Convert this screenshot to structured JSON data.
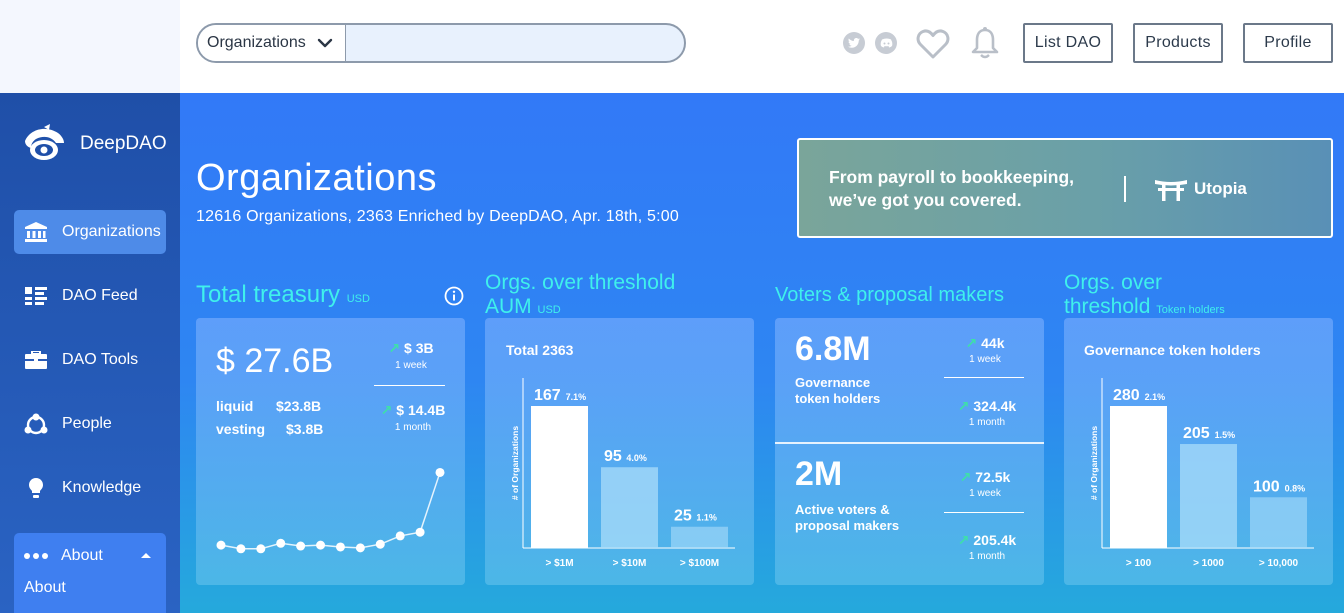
{
  "search": {
    "category": "Organizations",
    "placeholder": ""
  },
  "top_buttons": {
    "list_dao": "List DAO",
    "products": "Products",
    "profile": "Profile"
  },
  "icons": {
    "twitter": "twitter-icon",
    "discord": "discord-icon",
    "heart": "heart-icon",
    "bell": "bell-icon"
  },
  "brand": {
    "name": "DeepDAO"
  },
  "sidebar": {
    "items": [
      {
        "label": "Organizations",
        "icon": "bank-icon"
      },
      {
        "label": "DAO Feed",
        "icon": "feed-icon"
      },
      {
        "label": "DAO Tools",
        "icon": "toolbox-icon"
      },
      {
        "label": "People",
        "icon": "people-icon"
      },
      {
        "label": "Knowledge",
        "icon": "lightbulb-icon"
      }
    ],
    "about": {
      "label": "About",
      "sub_label": "About"
    }
  },
  "page": {
    "title": "Organizations",
    "subtitle": "12616 Organizations, 2363 Enriched by DeepDAO, Apr. 18th, 5:00"
  },
  "banner": {
    "line1": "From payroll to bookkeeping,",
    "line2": "we’ve got you covered.",
    "brand": "Utopia"
  },
  "treasury": {
    "title": "Total treasury",
    "unit": "USD",
    "value": "$ 27.6B",
    "liquid_label": "liquid",
    "liquid_value": "$23.8B",
    "vesting_label": "vesting",
    "vesting_value": "$3.8B",
    "change_1w": "$ 3B",
    "period_1w": "1 week",
    "change_1m": "$ 14.4B",
    "period_1m": "1 month",
    "sparkline": [
      0.14,
      0.1,
      0.1,
      0.16,
      0.13,
      0.14,
      0.12,
      0.11,
      0.15,
      0.24,
      0.28,
      0.93
    ]
  },
  "aum": {
    "title_line1": "Orgs. over threshold",
    "title_line2": "AUM",
    "unit": "USD",
    "card_title": "Total 2363",
    "ylabel": "# of Organizations",
    "categories": [
      "> $1M",
      "> $10M",
      "> $100M"
    ],
    "values": [
      167,
      95,
      25
    ],
    "percents": [
      "7.1%",
      "4.0%",
      "1.1%"
    ]
  },
  "voters": {
    "title": "Voters & proposal makers",
    "holders_value": "6.8M",
    "holders_label_1": "Governance",
    "holders_label_2": "token holders",
    "holders_1w": "44k",
    "holders_1w_period": "1 week",
    "holders_1m": "324.4k",
    "holders_1m_period": "1 month",
    "active_value": "2M",
    "active_label_1": "Active voters &",
    "active_label_2": "proposal makers",
    "active_1w": "72.5k",
    "active_1w_period": "1 week",
    "active_1m": "205.4k",
    "active_1m_period": "1 month"
  },
  "holders_threshold": {
    "title_line1": "Orgs. over",
    "title_line2": "threshold",
    "unit": "Token holders",
    "card_title": "Governance token holders",
    "ylabel": "# of Organizations",
    "categories": [
      "> 100",
      "> 1000",
      "> 10,000"
    ],
    "values": [
      280,
      205,
      100
    ],
    "percents": [
      "2.1%",
      "1.5%",
      "0.8%"
    ]
  },
  "colors": {
    "accent_cyan": "#3ff0ec",
    "up_arrow": "#3ee0a8",
    "sidebar_active": "#4e8be8"
  },
  "chart_data": [
    {
      "type": "line",
      "title": "Total treasury",
      "x": [
        1,
        2,
        3,
        4,
        5,
        6,
        7,
        8,
        9,
        10,
        11,
        12
      ],
      "values": [
        0.14,
        0.1,
        0.1,
        0.16,
        0.13,
        0.14,
        0.12,
        0.11,
        0.15,
        0.24,
        0.28,
        0.93
      ]
    },
    {
      "type": "bar",
      "title": "Total 2363",
      "categories": [
        "> $1M",
        "> $10M",
        "> $100M"
      ],
      "values": [
        167,
        95,
        25
      ],
      "ylabel": "# of Organizations"
    },
    {
      "type": "bar",
      "title": "Governance token holders",
      "categories": [
        "> 100",
        "> 1000",
        "> 10,000"
      ],
      "values": [
        280,
        205,
        100
      ],
      "ylabel": "# of Organizations"
    }
  ]
}
